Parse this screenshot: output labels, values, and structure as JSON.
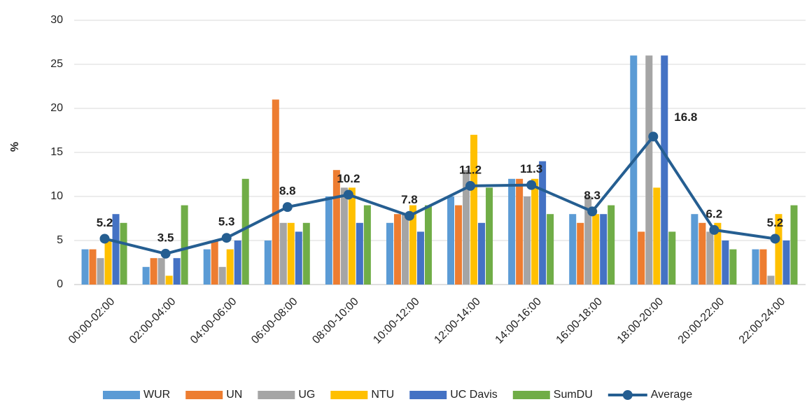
{
  "chart_data": {
    "type": "bar",
    "ylabel": "%",
    "categories": [
      "00:00-02:00",
      "02:00-04:00",
      "04:00-06:00",
      "06:00-08:00",
      "08:00-10:00",
      "10:00-12:00",
      "12:00-14:00",
      "14:00-16:00",
      "16:00-18:00",
      "18:00-20:00",
      "20:00-22:00",
      "22:00-24:00"
    ],
    "series": [
      {
        "name": "WUR",
        "color": "#5b9bd5",
        "values": [
          4,
          2,
          4,
          5,
          10,
          7,
          10,
          12,
          8,
          26,
          8,
          4
        ]
      },
      {
        "name": "UN",
        "color": "#ed7d31",
        "values": [
          4,
          3,
          5,
          21,
          13,
          8,
          9,
          12,
          7,
          6,
          7,
          4
        ]
      },
      {
        "name": "UG",
        "color": "#a5a5a5",
        "values": [
          3,
          3,
          2,
          7,
          11,
          8,
          13,
          10,
          10,
          26,
          6,
          1
        ]
      },
      {
        "name": "NTU",
        "color": "#ffc000",
        "values": [
          5,
          1,
          4,
          7,
          11,
          9,
          17,
          12,
          8,
          11,
          7,
          8
        ]
      },
      {
        "name": "UC Davis",
        "color": "#4472c4",
        "values": [
          8,
          3,
          5,
          6,
          7,
          6,
          7,
          14,
          8,
          26,
          5,
          5
        ]
      },
      {
        "name": "SumDU",
        "color": "#70ad47",
        "values": [
          7,
          9,
          12,
          7,
          9,
          9,
          11,
          8,
          9,
          6,
          4,
          9
        ]
      },
      {
        "name": "Average",
        "type": "line",
        "color": "#255e91",
        "values": [
          5.2,
          3.5,
          5.3,
          8.8,
          10.2,
          7.8,
          11.2,
          11.3,
          8.3,
          16.8,
          6.2,
          5.2
        ]
      }
    ],
    "ylim": [
      0,
      30
    ],
    "yticks": [
      0,
      5,
      10,
      15,
      20,
      25,
      30
    ],
    "grid": true,
    "legend": "bottom"
  }
}
